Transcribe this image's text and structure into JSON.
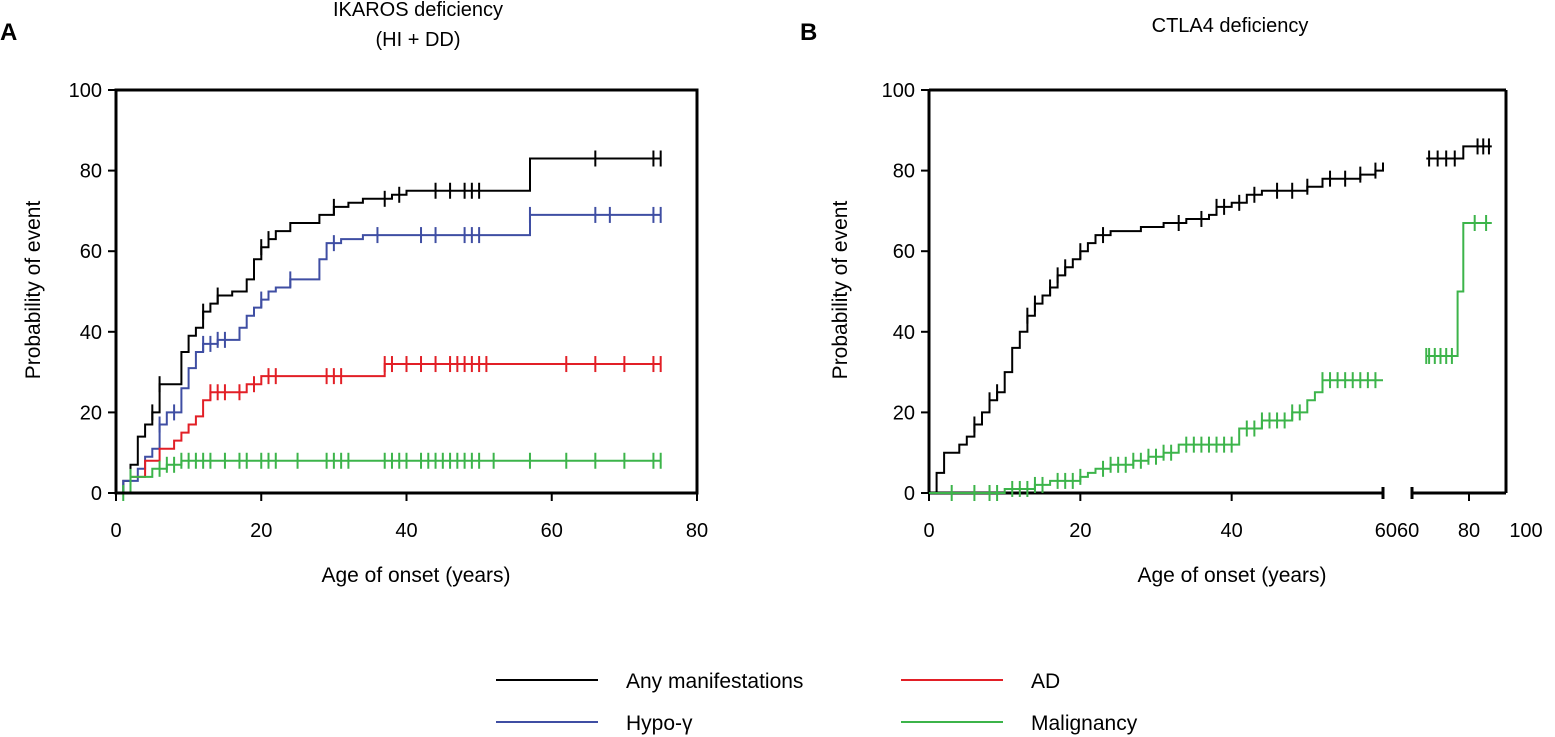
{
  "chart_data": [
    {
      "panel": "A",
      "type": "line",
      "subtype": "kaplan-meier-step",
      "title": "IKAROS deficiency",
      "subtitle": "(HI + DD)",
      "xlabel": "Age of onset (years)",
      "ylabel": "Probability of event",
      "xlim": [
        0,
        80
      ],
      "ylim": [
        0,
        100
      ],
      "xticks": [
        "0",
        "20",
        "40",
        "60",
        "80"
      ],
      "yticks": [
        "0",
        "20",
        "40",
        "60",
        "80",
        "100"
      ],
      "series": [
        {
          "name": "Any manifestations",
          "color": "#000000",
          "steps": [
            [
              0,
              0
            ],
            [
              1,
              3
            ],
            [
              2,
              7
            ],
            [
              3,
              14
            ],
            [
              4,
              17
            ],
            [
              5,
              20
            ],
            [
              6,
              27
            ],
            [
              8,
              27
            ],
            [
              9,
              35
            ],
            [
              10,
              39
            ],
            [
              11,
              41
            ],
            [
              12,
              45
            ],
            [
              13,
              47
            ],
            [
              14,
              49
            ],
            [
              16,
              50
            ],
            [
              18,
              53
            ],
            [
              19,
              58
            ],
            [
              20,
              61
            ],
            [
              21,
              63
            ],
            [
              22,
              65
            ],
            [
              24,
              67
            ],
            [
              28,
              69
            ],
            [
              30,
              71
            ],
            [
              32,
              72
            ],
            [
              34,
              73
            ],
            [
              38,
              74
            ],
            [
              40,
              75
            ],
            [
              57,
              83
            ],
            [
              75,
              83
            ]
          ],
          "censor": [
            5,
            6,
            12,
            14,
            20,
            21,
            30,
            37,
            39,
            44,
            46,
            48,
            49,
            50,
            66,
            74,
            75
          ]
        },
        {
          "name": "Hypo-γ",
          "color": "#3f4ea3",
          "steps": [
            [
              0,
              0
            ],
            [
              1,
              3
            ],
            [
              3,
              6
            ],
            [
              4,
              9
            ],
            [
              5,
              11
            ],
            [
              6,
              17
            ],
            [
              7,
              20
            ],
            [
              9,
              26
            ],
            [
              10,
              31
            ],
            [
              11,
              35
            ],
            [
              12,
              37
            ],
            [
              14,
              38
            ],
            [
              17,
              41
            ],
            [
              18,
              44
            ],
            [
              19,
              46
            ],
            [
              20,
              48
            ],
            [
              21,
              50
            ],
            [
              22,
              51
            ],
            [
              24,
              53
            ],
            [
              28,
              58
            ],
            [
              29,
              62
            ],
            [
              31,
              63
            ],
            [
              34,
              64
            ],
            [
              57,
              69
            ],
            [
              75,
              69
            ]
          ],
          "censor": [
            6,
            8,
            12,
            13,
            14,
            15,
            20,
            24,
            30,
            36,
            42,
            44,
            48,
            49,
            50,
            57,
            66,
            68,
            74,
            75
          ]
        },
        {
          "name": "AD",
          "color": "#e21f26",
          "steps": [
            [
              0,
              0
            ],
            [
              2,
              4
            ],
            [
              4,
              8
            ],
            [
              6,
              11
            ],
            [
              8,
              13
            ],
            [
              9,
              15
            ],
            [
              10,
              17
            ],
            [
              11,
              19
            ],
            [
              12,
              23
            ],
            [
              13,
              25
            ],
            [
              18,
              27
            ],
            [
              20,
              29
            ],
            [
              37,
              32
            ],
            [
              75,
              32
            ]
          ],
          "censor": [
            13,
            14,
            15,
            17,
            19,
            21,
            22,
            29,
            30,
            31,
            37,
            38,
            40,
            42,
            44,
            46,
            47,
            48,
            49,
            50,
            51,
            62,
            66,
            70,
            74,
            75
          ]
        },
        {
          "name": "Malignancy",
          "color": "#3cb44a",
          "steps": [
            [
              0,
              0
            ],
            [
              2,
              4
            ],
            [
              5,
              6
            ],
            [
              7,
              7
            ],
            [
              9,
              8
            ],
            [
              75,
              8
            ]
          ],
          "censor": [
            1,
            2,
            6,
            7,
            8,
            9,
            10,
            11,
            12,
            13,
            15,
            17,
            18,
            20,
            21,
            22,
            25,
            29,
            30,
            31,
            32,
            37,
            38,
            39,
            40,
            42,
            43,
            44,
            45,
            46,
            47,
            48,
            49,
            50,
            52,
            57,
            62,
            66,
            70,
            74,
            75
          ]
        }
      ]
    },
    {
      "panel": "B",
      "type": "line",
      "subtype": "kaplan-meier-step-broken-axis",
      "title": "CTLA4 deficiency",
      "subtitle": "",
      "xlabel": "Age of onset (years)",
      "ylabel": "Probability of event",
      "xlim_left": [
        0,
        60
      ],
      "xlim_right": [
        60,
        100
      ],
      "ylim": [
        0,
        100
      ],
      "xticks": [
        "0",
        "20",
        "40",
        "6060",
        "80",
        "100"
      ],
      "yticks": [
        "0",
        "20",
        "40",
        "60",
        "80",
        "100"
      ],
      "series": [
        {
          "name": "Any manifestations",
          "color": "#000000",
          "steps": [
            [
              0,
              0
            ],
            [
              1,
              5
            ],
            [
              2,
              10
            ],
            [
              4,
              12
            ],
            [
              5,
              14
            ],
            [
              6,
              17
            ],
            [
              7,
              20
            ],
            [
              8,
              23
            ],
            [
              9,
              25
            ],
            [
              10,
              30
            ],
            [
              11,
              36
            ],
            [
              12,
              40
            ],
            [
              13,
              44
            ],
            [
              14,
              47
            ],
            [
              15,
              49
            ],
            [
              16,
              51
            ],
            [
              17,
              54
            ],
            [
              18,
              56
            ],
            [
              19,
              58
            ],
            [
              20,
              60
            ],
            [
              21,
              62
            ],
            [
              22,
              64
            ],
            [
              24,
              65
            ],
            [
              28,
              66
            ],
            [
              31,
              67
            ],
            [
              34,
              68
            ],
            [
              37,
              69
            ],
            [
              38,
              71
            ],
            [
              40,
              72
            ],
            [
              42,
              74
            ],
            [
              44,
              75
            ],
            [
              50,
              76
            ],
            [
              52,
              78
            ],
            [
              57,
              79
            ],
            [
              59,
              80
            ],
            [
              60,
              82
            ]
          ],
          "censor": [
            6,
            8,
            9,
            13,
            14,
            16,
            17,
            18,
            20,
            23,
            33,
            36,
            38,
            39,
            41,
            43,
            46,
            48,
            50,
            53,
            55,
            57,
            59
          ],
          "steps_right": [
            [
              65,
              83
            ],
            [
              78,
              86
            ],
            [
              88,
              86
            ]
          ],
          "censor_right": [
            66,
            69,
            72,
            75,
            83,
            85,
            87
          ]
        },
        {
          "name": "Malignancy",
          "color": "#3cb44a",
          "steps": [
            [
              0,
              0
            ],
            [
              10,
              1
            ],
            [
              14,
              2
            ],
            [
              16,
              3
            ],
            [
              20,
              4
            ],
            [
              21,
              5
            ],
            [
              22,
              6
            ],
            [
              24,
              7
            ],
            [
              27,
              8
            ],
            [
              29,
              9
            ],
            [
              31,
              10
            ],
            [
              33,
              12
            ],
            [
              41,
              16
            ],
            [
              44,
              18
            ],
            [
              48,
              20
            ],
            [
              50,
              23
            ],
            [
              51,
              25
            ],
            [
              52,
              28
            ],
            [
              60,
              28
            ]
          ],
          "censor": [
            3,
            6,
            8,
            9,
            11,
            12,
            13,
            14,
            15,
            17,
            18,
            19,
            20,
            23,
            24,
            25,
            26,
            27,
            28,
            29,
            30,
            31,
            32,
            34,
            35,
            36,
            37,
            38,
            39,
            40,
            42,
            43,
            44,
            45,
            46,
            47,
            48,
            49,
            52,
            53,
            54,
            55,
            56,
            57,
            58,
            59
          ],
          "steps_right": [
            [
              65,
              34
            ],
            [
              76,
              50
            ],
            [
              78,
              67
            ],
            [
              88,
              67
            ]
          ],
          "censor_right": [
            65,
            66,
            68,
            70,
            72,
            74,
            82,
            86
          ]
        }
      ]
    }
  ],
  "legend": [
    {
      "label": "Any manifestations",
      "color": "#000000"
    },
    {
      "label": "AD",
      "color": "#e21f26"
    },
    {
      "label": "Hypo-γ",
      "color": "#3f4ea3"
    },
    {
      "label": "Malignancy",
      "color": "#3cb44a"
    }
  ]
}
